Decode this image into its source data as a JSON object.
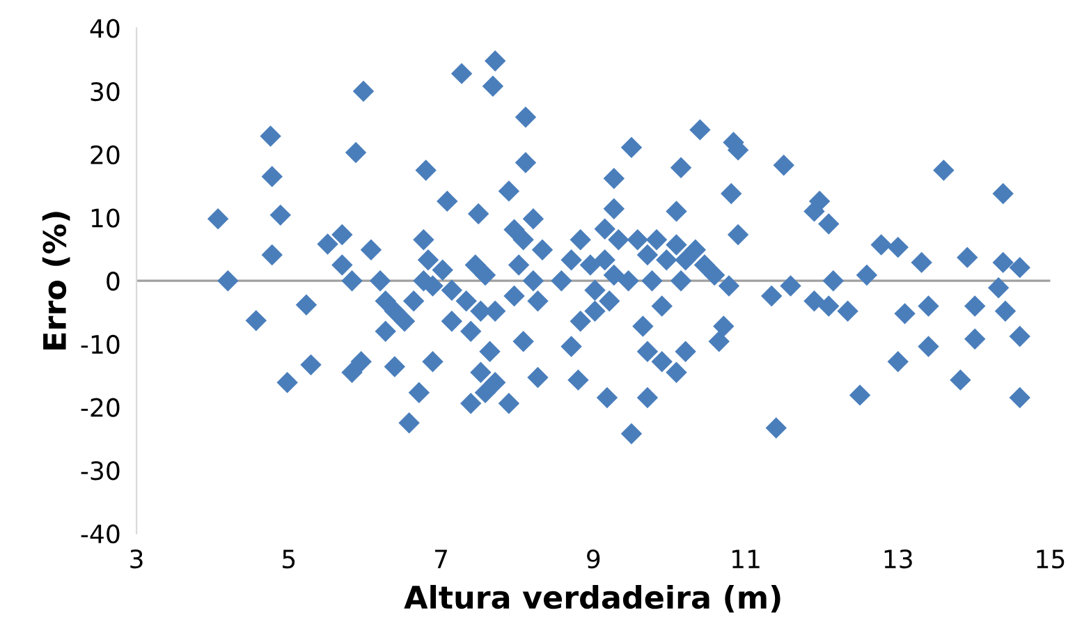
{
  "chart_data": {
    "type": "scatter",
    "xlabel": "Altura verdadeira (m)",
    "ylabel": "Erro (%)",
    "xlim": [
      3,
      15
    ],
    "xticks": [
      3,
      5,
      7,
      9,
      11,
      13,
      15
    ],
    "ylim": [
      -40,
      40
    ],
    "yticks": [
      -40,
      -30,
      -20,
      -10,
      0,
      10,
      20,
      30,
      40
    ],
    "grid": false,
    "marker": "diamond",
    "ref_lines": [
      {
        "axis": "y",
        "value": 0,
        "color": "#a0a0a0"
      }
    ],
    "series": [
      {
        "color": "#4a7ebb",
        "x": [
          4.07,
          4.2,
          4.57,
          4.76,
          4.78,
          4.89,
          4.78,
          4.98,
          5.23,
          5.29,
          5.98,
          5.88,
          5.51,
          5.7,
          5.7,
          5.83,
          6.08,
          5.83,
          5.95,
          6.2,
          6.27,
          6.39,
          6.8,
          7.08,
          7.49,
          7.27,
          7.71,
          7.68,
          6.27,
          6.58,
          6.71,
          6.89,
          6.39,
          6.52,
          6.64,
          6.77,
          6.83,
          6.77,
          6.89,
          7.02,
          7.14,
          7.14,
          7.33,
          7.45,
          7.52,
          7.39,
          7.64,
          7.58,
          7.39,
          7.52,
          8.11,
          8.11,
          7.89,
          8.21,
          8.08,
          7.96,
          8.33,
          8.02,
          8.21,
          7.96,
          8.27,
          7.71,
          7.58,
          8.08,
          8.27,
          7.89,
          7.71,
          8.83,
          8.71,
          8.58,
          8.96,
          9.27,
          9.5,
          9.27,
          9.15,
          9.33,
          9.15,
          9.02,
          9.27,
          9.46,
          9.58,
          9.71,
          9.83,
          9.96,
          10.09,
          10.21,
          10.34,
          10.46,
          10.59,
          10.78,
          10.15,
          9.77,
          9.21,
          9.02,
          8.83,
          8.71,
          8.8,
          9.18,
          9.5,
          9.65,
          9.71,
          9.9,
          10.09,
          10.21,
          9.71,
          9.9,
          10.4,
          10.84,
          10.9,
          10.15,
          10.81,
          10.09,
          10.9,
          10.71,
          10.65,
          11.34,
          11.5,
          11.4,
          11.59,
          11.97,
          12.09,
          11.9,
          11.9,
          12.15,
          12.09,
          12.34,
          12.59,
          12.78,
          13.0,
          13.31,
          13.09,
          13.4,
          13.4,
          13.0,
          12.5,
          13.6,
          13.91,
          14.01,
          14.01,
          13.82,
          14.38,
          14.38,
          14.6,
          14.32,
          14.41,
          14.6,
          14.6
        ],
        "values": [
          9.8,
          0,
          -6.3,
          22.9,
          16.5,
          10.4,
          4.1,
          -16.1,
          -3.8,
          -13.3,
          30.0,
          20.3,
          5.8,
          7.3,
          2.5,
          0,
          4.9,
          -14.5,
          -12.8,
          0,
          -3.2,
          -13.6,
          17.5,
          12.6,
          10.6,
          32.8,
          34.8,
          30.8,
          -8.0,
          -22.5,
          -17.7,
          -12.8,
          -4.8,
          -6.4,
          -3.2,
          6.5,
          3.3,
          0,
          -0.8,
          1.7,
          -1.5,
          -6.4,
          -3.2,
          2.5,
          -4.8,
          -8.0,
          -11.2,
          -17.7,
          -19.4,
          -14.5,
          25.9,
          18.7,
          14.2,
          9.8,
          6.5,
          8.1,
          4.9,
          2.5,
          0,
          -2.4,
          -3.2,
          -4.8,
          0.9,
          -9.6,
          -15.3,
          -19.4,
          -16.1,
          6.5,
          3.3,
          0,
          2.5,
          16.2,
          21.1,
          11.4,
          8.2,
          6.5,
          3.3,
          -1.5,
          0.9,
          0,
          6.5,
          4.1,
          6.5,
          3.3,
          5.7,
          3.3,
          4.9,
          2.5,
          0.9,
          -0.8,
          0,
          0,
          -3.2,
          -4.8,
          -6.4,
          -10.4,
          -15.7,
          -18.5,
          -24.2,
          -7.2,
          -11.2,
          -12.8,
          -14.5,
          -11.2,
          -18.5,
          -4.0,
          23.9,
          21.9,
          20.7,
          17.9,
          13.8,
          11.0,
          7.3,
          -7.2,
          -9.6,
          -2.4,
          18.3,
          -23.3,
          -0.8,
          12.6,
          9.0,
          11.0,
          -3.2,
          0,
          -4.0,
          -4.8,
          0.9,
          5.7,
          5.3,
          2.9,
          -5.2,
          -4.0,
          -10.4,
          -12.8,
          -18.1,
          17.5,
          3.7,
          -4.0,
          -9.2,
          -15.7,
          13.8,
          2.9,
          2.1,
          -1.1,
          -4.8,
          -8.8,
          -18.5
        ]
      }
    ]
  }
}
